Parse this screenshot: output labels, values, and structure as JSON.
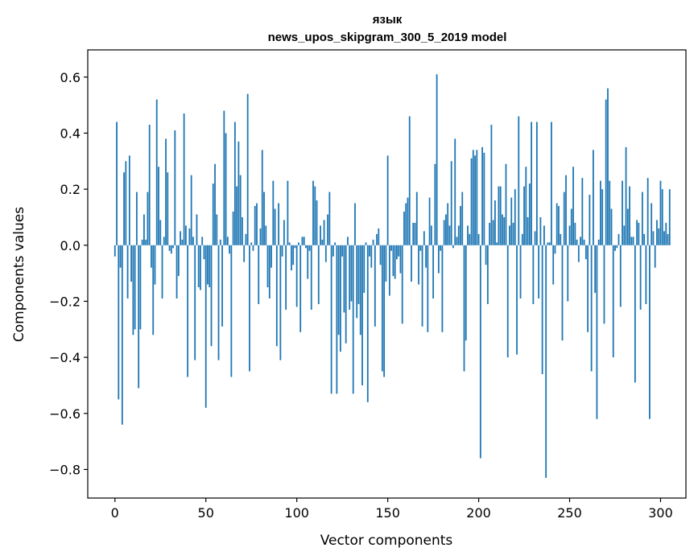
{
  "chart_data": {
    "type": "bar",
    "title_line1": "язык",
    "title_line2": "news_upos_skipgram_300_5_2019 model",
    "xlabel": "Vector components",
    "ylabel": "Components values",
    "xlim": [
      -14.95,
      313.95
    ],
    "ylim": [
      -0.902,
      0.697
    ],
    "xticks": [
      0,
      50,
      100,
      150,
      200,
      250,
      300
    ],
    "xtick_labels": [
      "0",
      "50",
      "100",
      "150",
      "200",
      "250",
      "300"
    ],
    "yticks": [
      -0.8,
      -0.6,
      -0.4,
      -0.2,
      0.0,
      0.2,
      0.4,
      0.6
    ],
    "ytick_labels": [
      "−0.8",
      "−0.6",
      "−0.4",
      "−0.2",
      "0.0",
      "0.2",
      "0.4",
      "0.6"
    ],
    "bar_color": "#1f77b4",
    "bar_width": 0.8,
    "values": [
      -0.04,
      0.44,
      -0.55,
      -0.08,
      -0.64,
      0.26,
      0.3,
      -0.19,
      0.32,
      -0.13,
      -0.32,
      -0.3,
      0.19,
      -0.51,
      -0.3,
      0.02,
      0.11,
      0.02,
      0.19,
      0.43,
      -0.08,
      -0.32,
      -0.14,
      0.52,
      0.28,
      0.09,
      -0.19,
      0.03,
      0.38,
      0.26,
      -0.02,
      -0.03,
      -0.01,
      0.41,
      -0.19,
      -0.11,
      0.05,
      0.02,
      0.47,
      0.07,
      -0.47,
      0.06,
      0.25,
      0.03,
      -0.41,
      0.11,
      -0.15,
      -0.16,
      0.03,
      -0.05,
      -0.58,
      -0.14,
      -0.15,
      -0.36,
      0.22,
      0.29,
      0.11,
      -0.41,
      0.02,
      -0.29,
      0.48,
      0.4,
      0.03,
      -0.03,
      -0.47,
      0.12,
      0.44,
      0.21,
      0.37,
      0.25,
      0.1,
      -0.06,
      0.04,
      0.54,
      -0.45,
      0.01,
      -0.02,
      0.14,
      0.15,
      -0.21,
      0.06,
      0.34,
      0.19,
      0.07,
      -0.15,
      -0.19,
      -0.08,
      0.23,
      0.13,
      -0.36,
      0.15,
      -0.41,
      -0.04,
      0.09,
      -0.23,
      0.23,
      0.01,
      -0.09,
      -0.07,
      -0.01,
      -0.22,
      0.01,
      -0.31,
      0.03,
      0.03,
      -0.01,
      -0.12,
      -0.02,
      -0.23,
      0.23,
      0.21,
      0.16,
      -0.21,
      0.07,
      0.02,
      0.09,
      -0.06,
      0.11,
      0.19,
      -0.53,
      -0.04,
      0.01,
      -0.53,
      -0.32,
      -0.38,
      -0.04,
      -0.24,
      -0.35,
      0.03,
      -0.23,
      -0.2,
      -0.53,
      0.15,
      -0.26,
      -0.21,
      -0.32,
      -0.5,
      -0.17,
      0.01,
      -0.56,
      -0.04,
      -0.08,
      0.02,
      -0.29,
      0.04,
      0.06,
      -0.07,
      -0.45,
      -0.47,
      -0.13,
      0.32,
      -0.18,
      -0.02,
      -0.11,
      -0.12,
      -0.05,
      -0.04,
      -0.1,
      -0.28,
      0.12,
      0.15,
      0.17,
      0.46,
      -0.13,
      0.08,
      0.08,
      0.19,
      -0.14,
      -0.02,
      -0.29,
      0.05,
      -0.08,
      -0.31,
      0.17,
      0.07,
      -0.19,
      0.29,
      0.61,
      -0.1,
      -0.02,
      -0.31,
      0.09,
      0.11,
      0.15,
      0.07,
      0.3,
      -0.01,
      0.38,
      0.03,
      0.07,
      0.14,
      0.19,
      -0.45,
      -0.34,
      0.07,
      0.04,
      0.31,
      0.34,
      0.32,
      0.34,
      0.04,
      -0.76,
      0.35,
      0.33,
      -0.07,
      -0.21,
      0.08,
      0.43,
      0.09,
      0.16,
      0.01,
      0.21,
      0.21,
      0.11,
      0.1,
      0.29,
      -0.4,
      0.07,
      0.17,
      0.08,
      0.2,
      -0.39,
      0.46,
      -0.19,
      0.04,
      0.21,
      0.28,
      0.1,
      0.22,
      0.44,
      -0.21,
      0.05,
      0.44,
      -0.19,
      0.1,
      -0.46,
      0.07,
      -0.83,
      0.01,
      0.01,
      0.44,
      -0.14,
      -0.03,
      0.15,
      0.14,
      0.04,
      -0.34,
      0.19,
      0.25,
      -0.2,
      0.07,
      0.13,
      0.28,
      0.08,
      0.02,
      -0.06,
      0.03,
      0.24,
      0.02,
      -0.05,
      -0.31,
      0.18,
      -0.45,
      0.34,
      -0.17,
      -0.62,
      0.02,
      0.23,
      0.2,
      -0.28,
      0.52,
      0.56,
      0.23,
      0.13,
      -0.4,
      -0.02,
      -0.01,
      0.04,
      -0.22,
      0.23,
      0.07,
      0.35,
      0.13,
      0.21,
      0.03,
      0.03,
      -0.49,
      0.09,
      0.08,
      -0.23,
      0.19,
      0.04,
      -0.21,
      0.24,
      -0.62,
      0.15,
      0.05,
      -0.08,
      0.09,
      0.06,
      0.23,
      0.2,
      0.05,
      0.08,
      0.04,
      0.2
    ]
  }
}
